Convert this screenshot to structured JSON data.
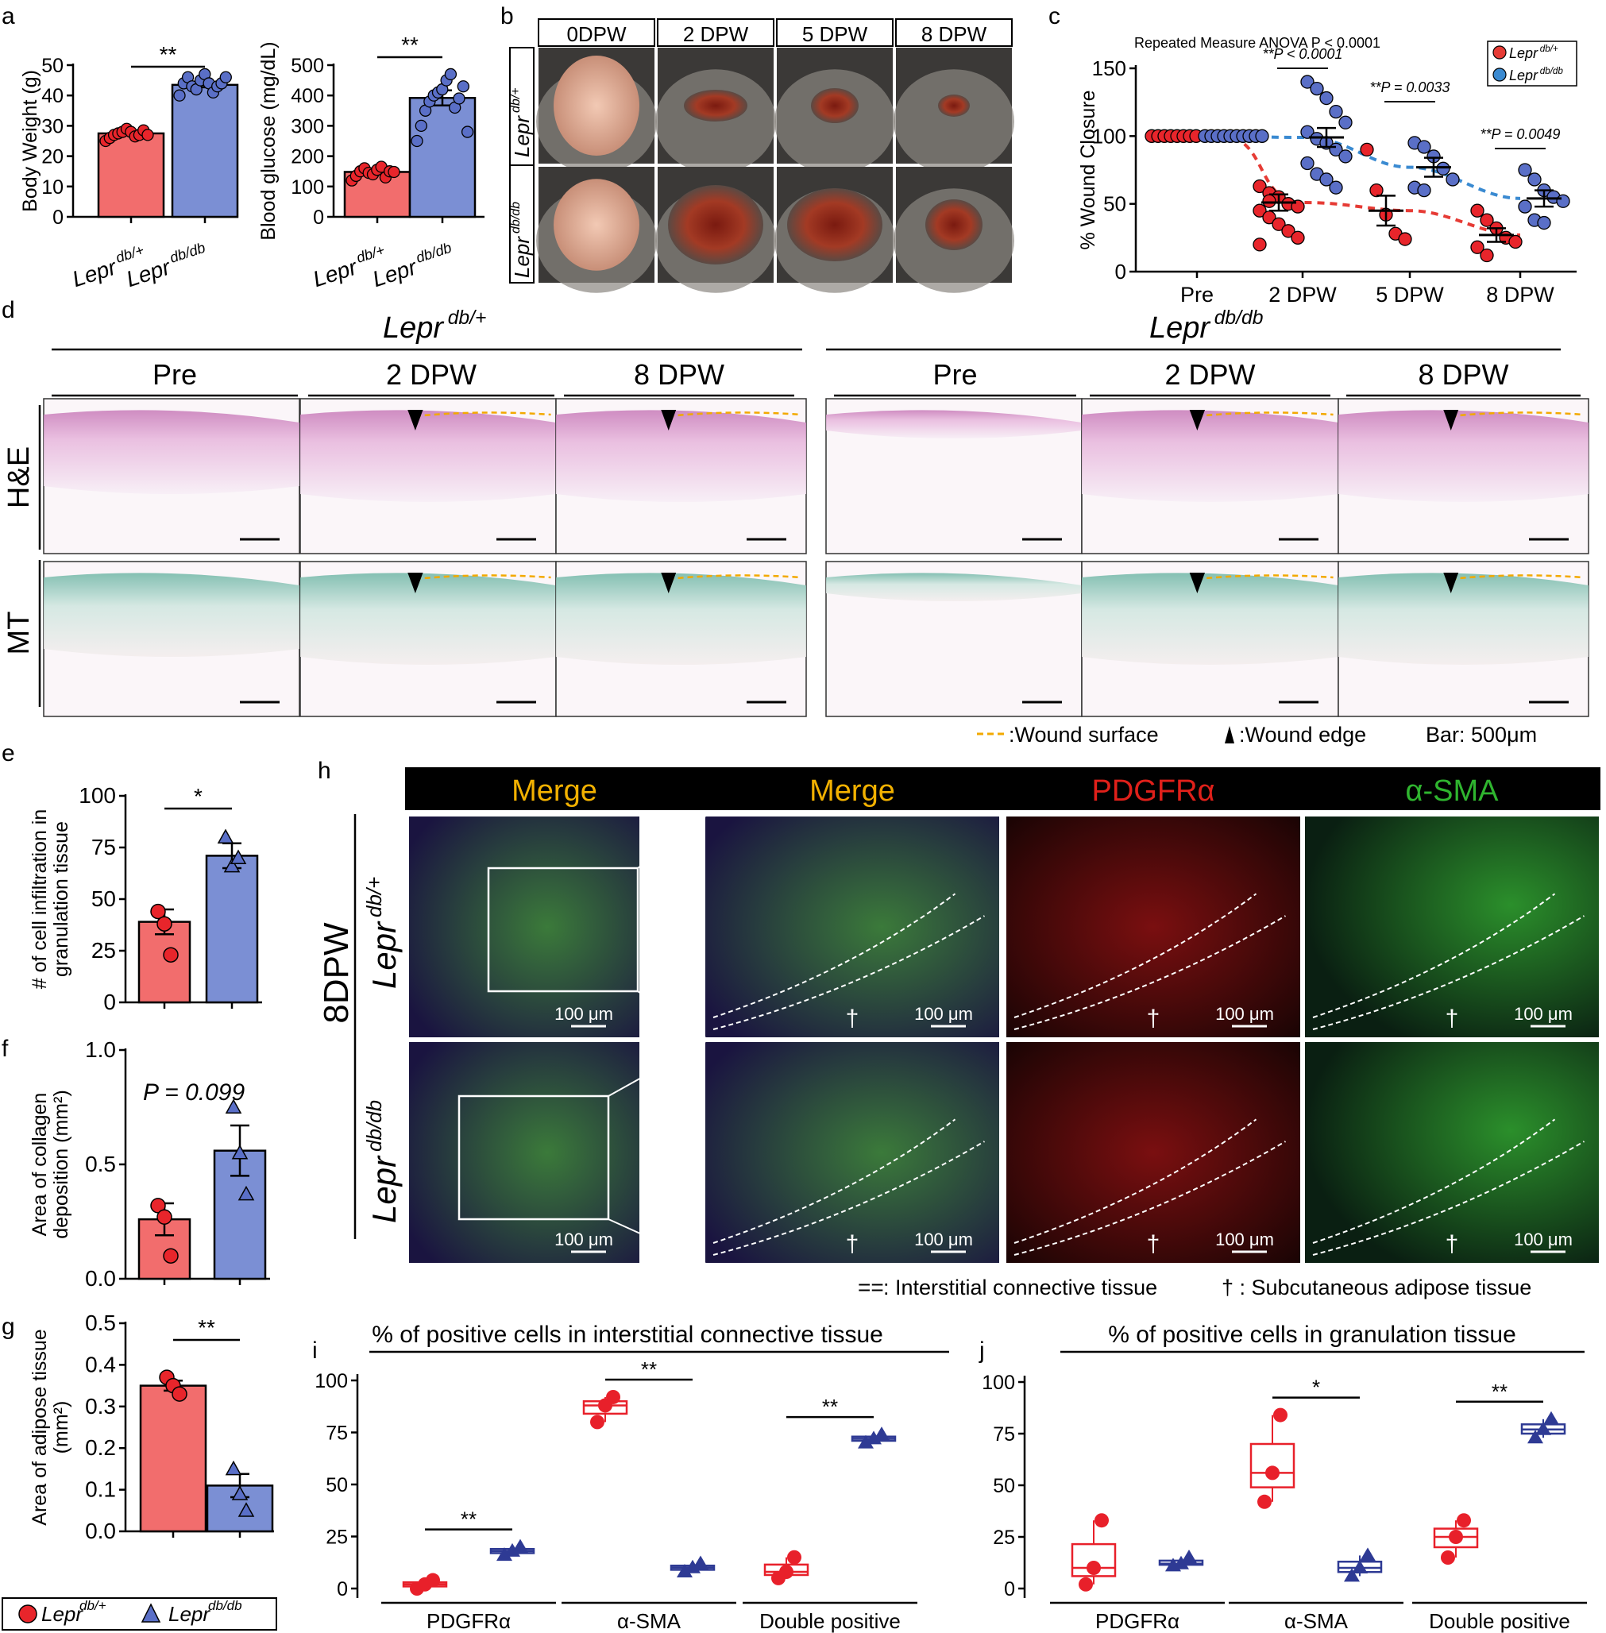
{
  "colors": {
    "red": "#f26d6d",
    "blue": "#7b8fd4",
    "dot_red": "#e8252b",
    "dot_blue": "#5a6fc7",
    "box_red": "#e8202a",
    "box_blue": "#2e3a94",
    "red2": "#e63b35",
    "blue2": "#3a8ad1",
    "gold": "#f2a900"
  },
  "panel_letters": [
    "a",
    "b",
    "c",
    "d",
    "e",
    "f",
    "g",
    "h",
    "i",
    "j"
  ],
  "groups": {
    "het": "Lepr",
    "het_sup": "db/+",
    "hom": "Lepr",
    "hom_sup": "db/db"
  },
  "chart_data": [
    {
      "id": "a1",
      "type": "bar",
      "ylabel": "Body Weight (g)",
      "ylim": [
        0,
        50
      ],
      "yticks": [
        0,
        10,
        20,
        30,
        40,
        50
      ],
      "categories": [
        "Lepr db/+",
        "Lepr db/db"
      ],
      "values": [
        27.5,
        43.5
      ],
      "sig": "**"
    },
    {
      "id": "a2",
      "type": "bar",
      "ylabel": "Blood glucose (mg/dL)",
      "ylim": [
        0,
        500
      ],
      "yticks": [
        0,
        100,
        200,
        300,
        400,
        500
      ],
      "categories": [
        "Lepr db/+",
        "Lepr db/db"
      ],
      "values": [
        148,
        392
      ],
      "sig": "**"
    },
    {
      "id": "c",
      "type": "line",
      "title": "Repeated Measure ANOVA P < 0.0001",
      "ylabel": "% Wound Closure",
      "ylim": [
        0,
        150
      ],
      "yticks": [
        0,
        50,
        100,
        150
      ],
      "categories": [
        "Pre",
        "2 DPW",
        "5 DPW",
        "8 DPW"
      ],
      "series": [
        {
          "name": "Lepr db/+",
          "means": [
            100,
            51,
            45,
            27
          ]
        },
        {
          "name": "Lepr db/db",
          "means": [
            100,
            99,
            77,
            54
          ]
        }
      ],
      "pvalues": [
        "**P < 0.0001",
        "**P = 0.0033",
        "**P = 0.0049"
      ]
    },
    {
      "id": "e",
      "type": "bar",
      "ylabel": "# of cell infiltration in granulation tissue",
      "ylim": [
        0,
        100
      ],
      "yticks": [
        0,
        25,
        50,
        75,
        100
      ],
      "values": [
        39,
        71
      ],
      "points": [
        [
          44,
          38,
          23
        ],
        [
          80,
          66,
          70
        ]
      ],
      "sig": "*"
    },
    {
      "id": "f",
      "type": "bar",
      "ylabel": "Area of collagen deposition (mm²)",
      "ylim": [
        0,
        1.0
      ],
      "yticks": [
        "0.0",
        "0.5",
        "1.0"
      ],
      "values": [
        0.26,
        0.56
      ],
      "points": [
        [
          0.32,
          0.27,
          0.1
        ],
        [
          0.75,
          0.55,
          0.37
        ]
      ],
      "annotation": "P = 0.099"
    },
    {
      "id": "g",
      "type": "bar",
      "ylabel": "Area of adipose tissue (mm²)",
      "ylim": [
        0,
        0.5
      ],
      "yticks": [
        "0.0",
        "0.1",
        "0.2",
        "0.3",
        "0.4",
        "0.5"
      ],
      "values": [
        0.35,
        0.11
      ],
      "points": [
        [
          0.37,
          0.35,
          0.33
        ],
        [
          0.15,
          0.09,
          0.05
        ]
      ],
      "sig": "**"
    },
    {
      "id": "i",
      "type": "box",
      "title": "% of positive cells in interstitial connective tissue",
      "ylim": [
        0,
        100
      ],
      "yticks": [
        0,
        25,
        50,
        75,
        100
      ],
      "categories": [
        "PDGFRα",
        "α-SMA",
        "Double positive"
      ],
      "medians": [
        [
          2,
          18
        ],
        [
          88,
          10
        ],
        [
          8,
          72
        ]
      ],
      "sig": [
        "**",
        "**",
        "**"
      ]
    },
    {
      "id": "j",
      "type": "box",
      "title": "% of positive cells in granulation tissue",
      "ylim": [
        0,
        100
      ],
      "yticks": [
        0,
        25,
        50,
        75,
        100
      ],
      "categories": [
        "PDGFRα",
        "α-SMA",
        "Double positive"
      ],
      "medians": [
        [
          10,
          12
        ],
        [
          56,
          10
        ],
        [
          25,
          77
        ]
      ],
      "sig": [
        "",
        "*",
        "**"
      ]
    }
  ],
  "panel_b": {
    "columns": [
      "0DPW",
      "2 DPW",
      "5 DPW",
      "8 DPW"
    ]
  },
  "panel_d": {
    "columns": [
      "Pre",
      "2 DPW",
      "8 DPW"
    ],
    "rows": [
      "H&E",
      "MT"
    ],
    "legend_surface": ":Wound surface",
    "legend_edge": ":Wound edge",
    "legend_bar": "Bar: 500μm"
  },
  "panel_h": {
    "columns": [
      "Merge",
      "Merge",
      "PDGFRα",
      "α-SMA"
    ],
    "row_label": "8DPW",
    "scale": "100 μm",
    "dagger": "†",
    "legend_conn": ": Interstitial connective tissue",
    "legend_adip": "† : Subcutaneous adipose tissue"
  },
  "legend_bottom": {
    "a": "Lepr",
    "a_sup": "db/+",
    "b": "Lepr",
    "b_sup": "db/db"
  }
}
